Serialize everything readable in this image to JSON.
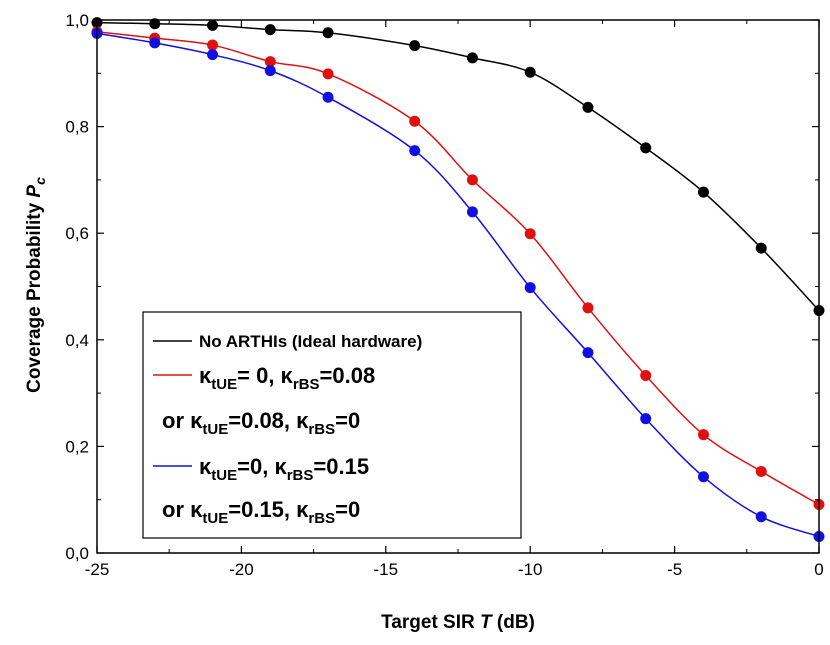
{
  "chart_data": {
    "type": "line",
    "xlabel": "Target SIR",
    "xlabel_symbol": "T",
    "xlabel_unit": "(dB)",
    "ylabel": "Coverage Probability",
    "ylabel_symbol": "P",
    "ylabel_subscript": "c",
    "xlim": [
      -25,
      0
    ],
    "ylim": [
      0,
      1
    ],
    "xticks": [
      -25,
      -20,
      -15,
      -10,
      -5,
      0
    ],
    "xtick_labels": [
      "-25",
      "-20",
      "-15",
      "-10",
      "-5",
      "0"
    ],
    "yticks": [
      0,
      0.2,
      0.4,
      0.6,
      0.8,
      1.0
    ],
    "ytick_labels": [
      "0,0",
      "0,2",
      "0,4",
      "0,6",
      "0,8",
      "1,0"
    ],
    "grid": false,
    "legend_placement": "bottom-left",
    "series": [
      {
        "color": "#000000",
        "x": [
          -25,
          -23,
          -21,
          -19,
          -17,
          -14,
          -12,
          -10,
          -8,
          -6,
          -4,
          -2,
          0
        ],
        "y": [
          0.995,
          0.993,
          0.99,
          0.982,
          0.976,
          0.952,
          0.929,
          0.902,
          0.836,
          0.76,
          0.677,
          0.572,
          0.455
        ]
      },
      {
        "color": "#e01010",
        "x": [
          -25,
          -23,
          -21,
          -19,
          -17,
          -14,
          -12,
          -10,
          -8,
          -6,
          -4,
          -2,
          0
        ],
        "y": [
          0.978,
          0.966,
          0.953,
          0.922,
          0.899,
          0.81,
          0.7,
          0.599,
          0.46,
          0.333,
          0.222,
          0.153,
          0.091
        ]
      },
      {
        "color": "#1010e0",
        "x": [
          -25,
          -23,
          -21,
          -19,
          -17,
          -14,
          -12,
          -10,
          -8,
          -6,
          -4,
          -2,
          0
        ],
        "y": [
          0.975,
          0.957,
          0.935,
          0.905,
          0.855,
          0.755,
          0.64,
          0.498,
          0.376,
          0.252,
          0.143,
          0.068,
          0.031
        ]
      }
    ],
    "legend": [
      {
        "color": "#000000",
        "text": "No ARTHIs  (Ideal hardware)"
      },
      {
        "color": "#e01010",
        "kappa": "κ",
        "sub1": "tUE",
        "mid": "= 0, ",
        "sub2": "rBS",
        "end": "=0.08"
      },
      {
        "prefix": "or ",
        "kappa": "κ",
        "sub1": "tUE",
        "mid": "=0.08, ",
        "sub2": "rBS",
        "end": "=0"
      },
      {
        "color": "#1010e0",
        "kappa": "κ",
        "sub1": "tUE",
        "mid": "=0, ",
        "sub2": "rBS",
        "end": "=0.15"
      },
      {
        "prefix": "or ",
        "kappa": "κ",
        "sub1": "tUE",
        "mid": "=0.15, ",
        "sub2": "rBS",
        "end": "=0"
      }
    ]
  }
}
